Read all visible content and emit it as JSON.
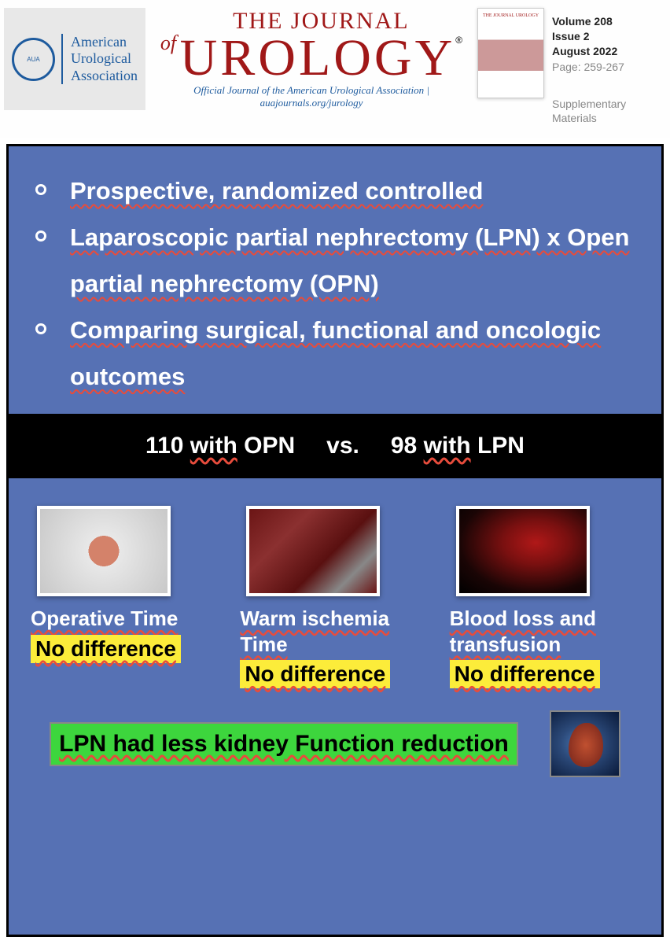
{
  "header": {
    "aua_lines": [
      "American",
      "Urological",
      "Association"
    ],
    "journal_of": "of",
    "journal_the": "THE JOURNAL",
    "journal_uro": "UROLOGY",
    "journal_subtitle": "Official Journal of the American Urological Association | auajournals.org/jurology",
    "volume": "Volume 208",
    "issue": "Issue 2",
    "date": "August 2022",
    "pages": "Page: 259-267",
    "supplementary": "Supplementary Materials"
  },
  "bullets": [
    "Prospective, randomized controlled",
    "Laparoscopic partial nephrectomy (LPN) x Open partial nephrectomy (OPN)",
    "Comparing surgical, functional and oncologic outcomes"
  ],
  "vs": {
    "left_n": "110",
    "left_label": "with",
    "left_group": "OPN",
    "mid": "vs.",
    "right_n": "98",
    "right_label": "with",
    "right_group": "LPN"
  },
  "cards": [
    {
      "title": "Operative Time",
      "result": "No difference",
      "thumb": "hourglass"
    },
    {
      "title": "Warm ischemia Time",
      "result": "No difference",
      "thumb": "surgery"
    },
    {
      "title": "Blood loss and transfusion",
      "result": "No difference",
      "thumb": "blood"
    }
  ],
  "conclusion": "LPN had less kidney Function   reduction",
  "colors": {
    "panel_bg": "#5671b4",
    "accent_red": "#a01818",
    "highlight_yellow": "#fcec3a",
    "highlight_green": "#3dd63d",
    "aua_blue": "#1e5b9e"
  }
}
